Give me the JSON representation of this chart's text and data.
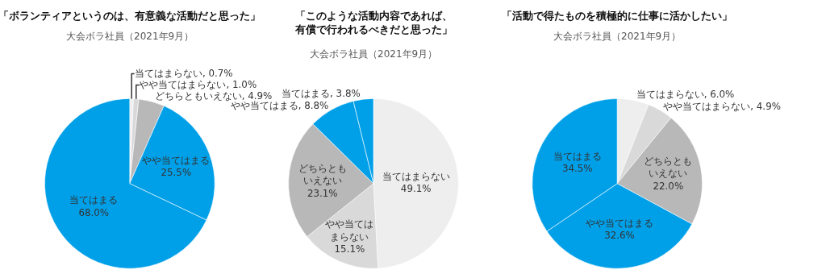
{
  "chart_data": [
    {
      "type": "pie",
      "title": "「ボランティアというのは、有意義な活動だと思った」",
      "subtitle": "大会ボラ社員（2021年9月）",
      "categories": [
        "当てはまらない",
        "やや当てはまらない",
        "どちらともいえない",
        "やや当てはまる",
        "当てはまる"
      ],
      "values": [
        0.7,
        1.0,
        4.9,
        25.5,
        68.0
      ],
      "value_labels": [
        "0.7%",
        "1.0%",
        "4.9%",
        "25.5%",
        "68.0%"
      ],
      "colors": [
        "#eeeeee",
        "#d9d9d9",
        "#b8b8b8",
        "#00a0e9",
        "#00a0e9"
      ]
    },
    {
      "type": "pie",
      "title": "「このような活動内容であれば、有償で行われるべきだと思った」",
      "subtitle": "大会ボラ社員（2021年9月）",
      "categories": [
        "当てはまらない",
        "やや当てはまらない",
        "どちらともいえない",
        "やや当てはまる",
        "当てはまる"
      ],
      "values": [
        49.1,
        15.1,
        23.1,
        8.8,
        3.8
      ],
      "value_labels": [
        "49.1%",
        "15.1%",
        "23.1%",
        "8.8%",
        "3.8%"
      ],
      "colors": [
        "#eeeeee",
        "#d9d9d9",
        "#b8b8b8",
        "#00a0e9",
        "#00a0e9"
      ]
    },
    {
      "type": "pie",
      "title": "「活動で得たものを積極的に仕事に活かしたい」",
      "subtitle": "大会ボラ社員（2021年9月）",
      "categories": [
        "当てはまらない",
        "やや当てはまらない",
        "どちらともいえない",
        "やや当てはまる",
        "当てはまる"
      ],
      "values": [
        6.0,
        4.9,
        22.0,
        32.6,
        34.5
      ],
      "value_labels": [
        "6.0%",
        "4.9%",
        "22.0%",
        "32.6%",
        "34.5%"
      ],
      "colors": [
        "#eeeeee",
        "#d9d9d9",
        "#b8b8b8",
        "#00a0e9",
        "#00a0e9"
      ]
    }
  ]
}
